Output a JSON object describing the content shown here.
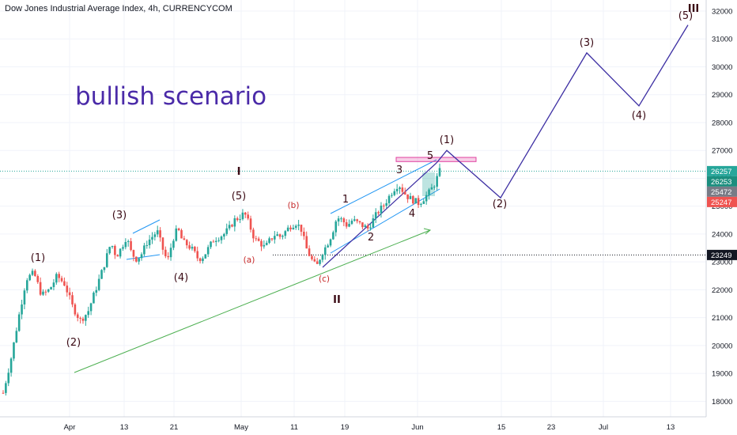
{
  "header": {
    "title": "Dow Jones Industrial Average Index, 4h, CURRENCYCOM"
  },
  "annotation_text": "bullish scenario",
  "colors": {
    "up": "#26a69a",
    "down": "#ef5350",
    "wave_path": "#3d2fa3",
    "channel": "#2196f3",
    "trendline": "#4caf50",
    "target_zone": "#e040a0",
    "label_dark": "#3a0a14",
    "label_red": "#c62828"
  },
  "chart_data": {
    "type": "candlestick",
    "title": "Dow Jones Industrial Average Index, 4h, CURRENCYCOM",
    "y_axis": {
      "range": [
        17500,
        32300
      ],
      "ticks": [
        18000,
        19000,
        20000,
        21000,
        22000,
        23000,
        24000,
        25000,
        26000,
        27000,
        28000,
        29000,
        30000,
        31000,
        32000
      ],
      "tick_labels": [
        "18000",
        "19000",
        "20000",
        "21000",
        "22000",
        "23000",
        "24000",
        "25000",
        "26000",
        "27000",
        "28000",
        "29000",
        "30000",
        "31000",
        "32000"
      ]
    },
    "x_axis": {
      "tick_labels": [
        "Apr",
        "13",
        "21",
        "May",
        "11",
        "19",
        "Jun",
        "15",
        "23",
        "Jul",
        "13"
      ]
    },
    "price_path": [
      [
        0,
        18300
      ],
      [
        3,
        19500
      ],
      [
        6,
        21000
      ],
      [
        9,
        22400
      ],
      [
        12,
        22600
      ],
      [
        15,
        21800
      ],
      [
        18,
        22000
      ],
      [
        21,
        22500
      ],
      [
        24,
        22200
      ],
      [
        27,
        21400
      ],
      [
        30,
        20900
      ],
      [
        33,
        21200
      ],
      [
        36,
        22000
      ],
      [
        39,
        22800
      ],
      [
        42,
        23700
      ],
      [
        44,
        23200
      ],
      [
        46,
        23500
      ],
      [
        48,
        23900
      ],
      [
        50,
        23300
      ],
      [
        52,
        23100
      ],
      [
        54,
        23300
      ],
      [
        56,
        23700
      ],
      [
        58,
        23900
      ],
      [
        60,
        24100
      ],
      [
        62,
        23500
      ],
      [
        64,
        23000
      ],
      [
        66,
        23800
      ],
      [
        68,
        24200
      ],
      [
        70,
        23700
      ],
      [
        72,
        23600
      ],
      [
        74,
        23400
      ],
      [
        76,
        23100
      ],
      [
        78,
        23200
      ],
      [
        80,
        23500
      ],
      [
        82,
        23800
      ],
      [
        84,
        23900
      ],
      [
        86,
        24000
      ],
      [
        88,
        24200
      ],
      [
        90,
        24500
      ],
      [
        92,
        24600
      ],
      [
        94,
        24750
      ],
      [
        96,
        24300
      ],
      [
        98,
        23800
      ],
      [
        100,
        23700
      ],
      [
        102,
        23500
      ],
      [
        104,
        23800
      ],
      [
        106,
        24000
      ],
      [
        108,
        23900
      ],
      [
        110,
        24100
      ],
      [
        112,
        24300
      ],
      [
        114,
        24400
      ],
      [
        116,
        24200
      ],
      [
        118,
        23500
      ],
      [
        120,
        23100
      ],
      [
        122,
        22800
      ],
      [
        124,
        23300
      ],
      [
        126,
        23600
      ],
      [
        128,
        24000
      ],
      [
        130,
        24600
      ],
      [
        132,
        24500
      ],
      [
        134,
        24300
      ],
      [
        136,
        24500
      ],
      [
        138,
        24400
      ],
      [
        140,
        24300
      ],
      [
        142,
        24200
      ],
      [
        144,
        24500
      ],
      [
        146,
        24800
      ],
      [
        148,
        25000
      ],
      [
        150,
        25300
      ],
      [
        152,
        25600
      ],
      [
        154,
        25800
      ],
      [
        156,
        25500
      ],
      [
        158,
        25300
      ],
      [
        160,
        25200
      ],
      [
        162,
        25100
      ],
      [
        164,
        25300
      ],
      [
        166,
        25500
      ],
      [
        168,
        25800
      ],
      [
        170,
        26250
      ]
    ],
    "last_price": 26257,
    "price_tags": [
      {
        "label": "26257",
        "value": 26257,
        "color": "#26a69a"
      },
      {
        "label": "26253",
        "value": 26253,
        "color": "#1b8e7e"
      },
      {
        "label": "25472",
        "value": 25472,
        "color": "#787b86"
      },
      {
        "label": "25247",
        "value": 25247,
        "color": "#ef5350"
      },
      {
        "label": "23249",
        "value": 23249,
        "color": "#131722"
      }
    ],
    "projection_path": [
      {
        "label": "(1)",
        "value": 27000
      },
      {
        "label": "(2)",
        "value": 25300
      },
      {
        "label": "(3)",
        "value": 30500
      },
      {
        "label": "(4)",
        "value": 28600
      },
      {
        "label": "(5)",
        "value": 31500
      }
    ],
    "wave_labels": [
      {
        "text": "(1)",
        "style": "dark"
      },
      {
        "text": "(2)",
        "style": "dark"
      },
      {
        "text": "(3)",
        "style": "dark"
      },
      {
        "text": "(4)",
        "style": "dark"
      },
      {
        "text": "(5)",
        "style": "dark"
      },
      {
        "text": "I",
        "style": "dark"
      },
      {
        "text": "(a)",
        "style": "red"
      },
      {
        "text": "(b)",
        "style": "red"
      },
      {
        "text": "(c)",
        "style": "red"
      },
      {
        "text": "II",
        "style": "dark"
      },
      {
        "text": "1",
        "style": "darkred"
      },
      {
        "text": "2",
        "style": "dark"
      },
      {
        "text": "3",
        "style": "dark"
      },
      {
        "text": "4",
        "style": "dark"
      },
      {
        "text": "5",
        "style": "darkred"
      },
      {
        "text": "(1)",
        "style": "dark"
      },
      {
        "text": "(2)",
        "style": "dark"
      },
      {
        "text": "(3)",
        "style": "dark"
      },
      {
        "text": "(4)",
        "style": "dark"
      },
      {
        "text": "(5)",
        "style": "dark"
      },
      {
        "text": "III",
        "style": "dark"
      }
    ],
    "horizontal_levels": [
      26257,
      23249
    ],
    "target_zone": [
      26600,
      26750
    ],
    "grid": true
  }
}
